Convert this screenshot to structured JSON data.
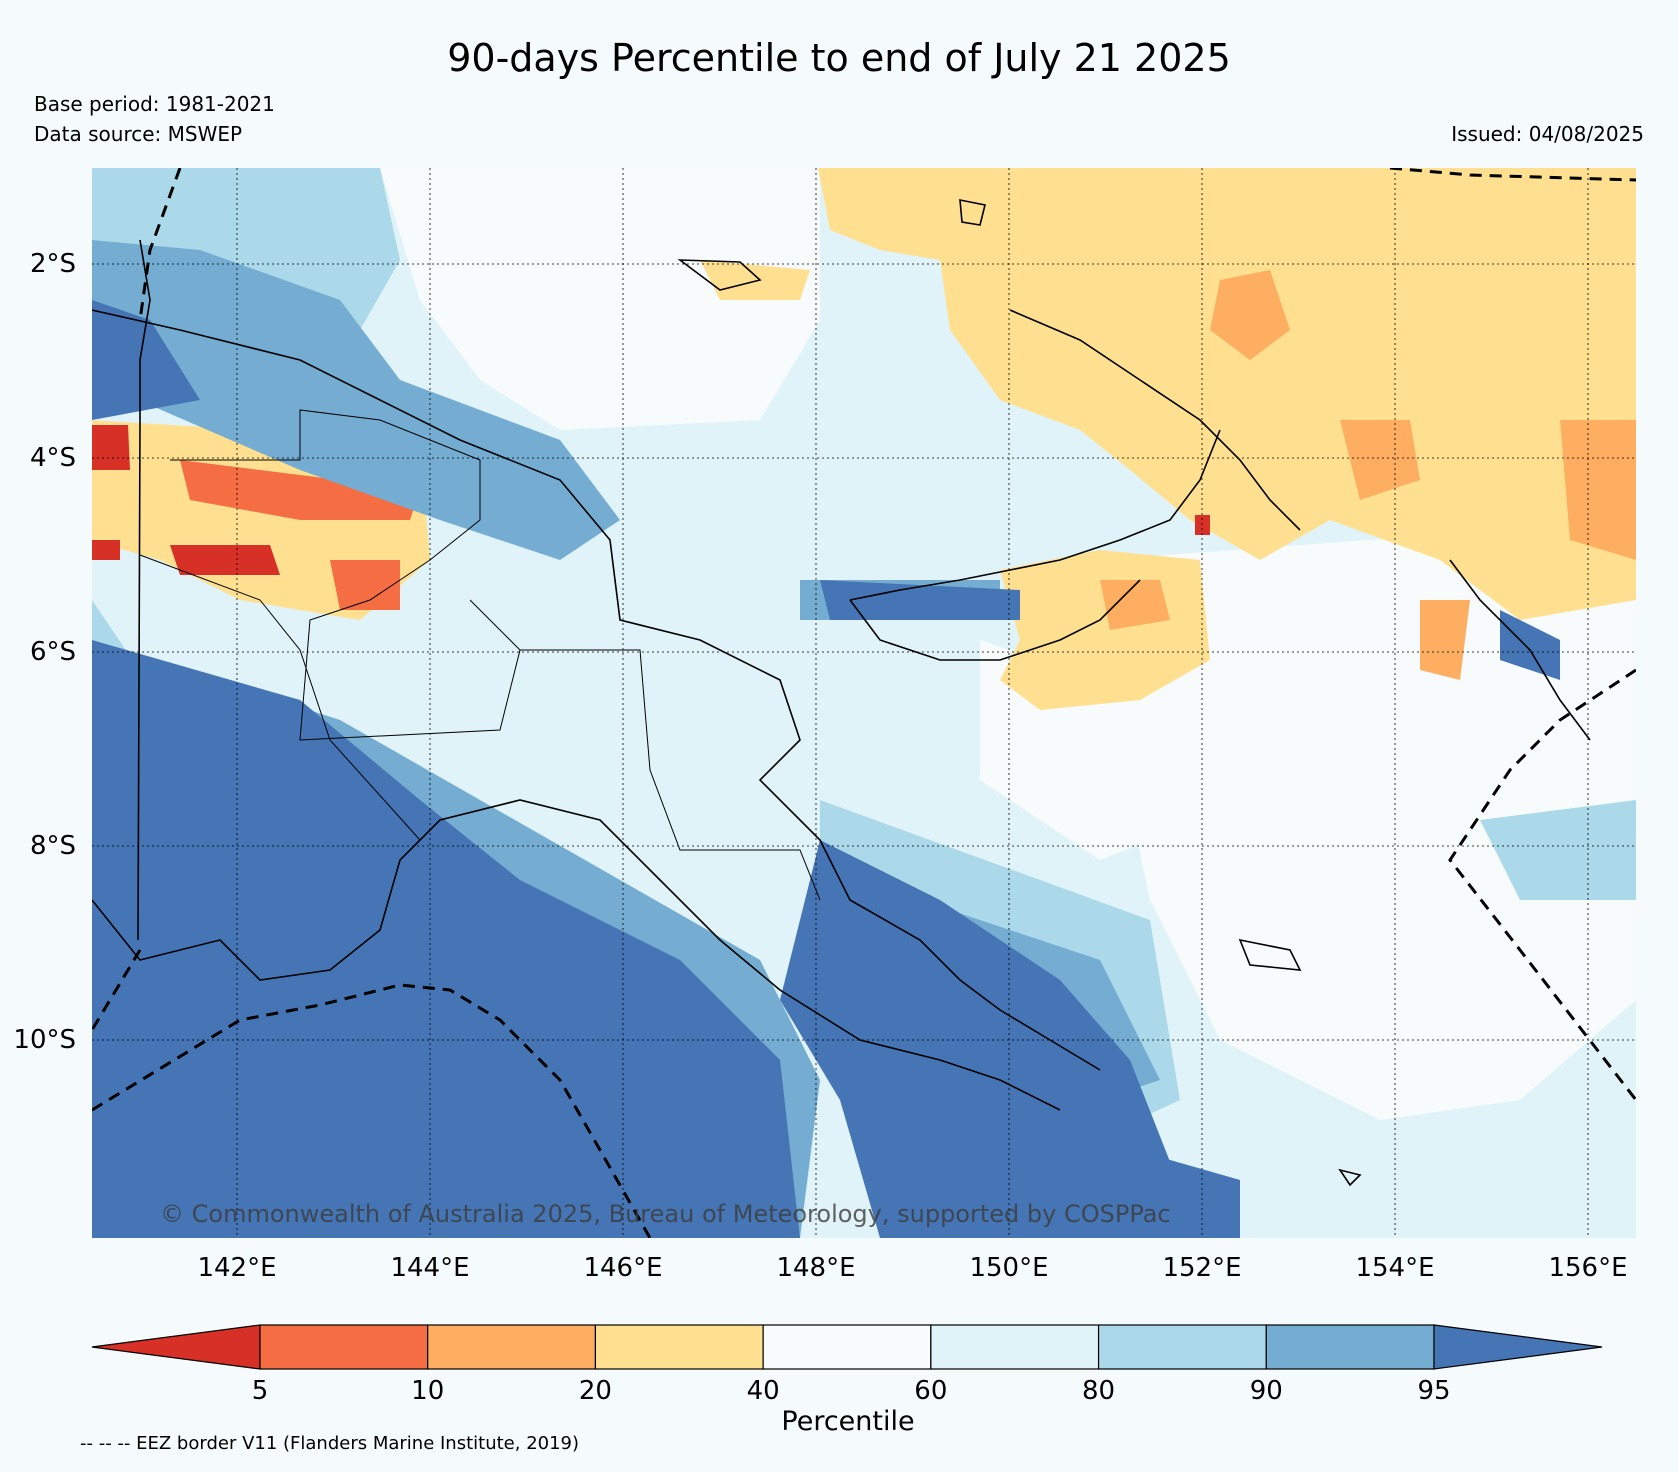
{
  "header": {
    "title": "90-days Percentile to end of July 21 2025",
    "base_period": "Base period: 1981-2021",
    "data_source": "Data source: MSWEP",
    "issued": "Issued: 04/08/2025"
  },
  "map": {
    "lat_labels": [
      "2°S",
      "4°S",
      "6°S",
      "8°S",
      "10°S"
    ],
    "lon_labels": [
      "142°E",
      "144°E",
      "146°E",
      "148°E",
      "150°E",
      "152°E",
      "154°E",
      "156°E"
    ],
    "copyright": "© Commonwealth of Australia 2025, Bureau of Meteorology, supported by COSPPac"
  },
  "colorbar": {
    "label": "Percentile",
    "ticks": [
      "5",
      "10",
      "20",
      "40",
      "60",
      "80",
      "90",
      "95"
    ],
    "colors": [
      "#d73027",
      "#f46d43",
      "#fdae61",
      "#fee090",
      "#f7fbfc",
      "#e0f3f8",
      "#abd9e9",
      "#74add1",
      "#4575b4"
    ]
  },
  "footnote": "-- -- -- EEZ border V11 (Flanders Marine Institute, 2019)"
}
